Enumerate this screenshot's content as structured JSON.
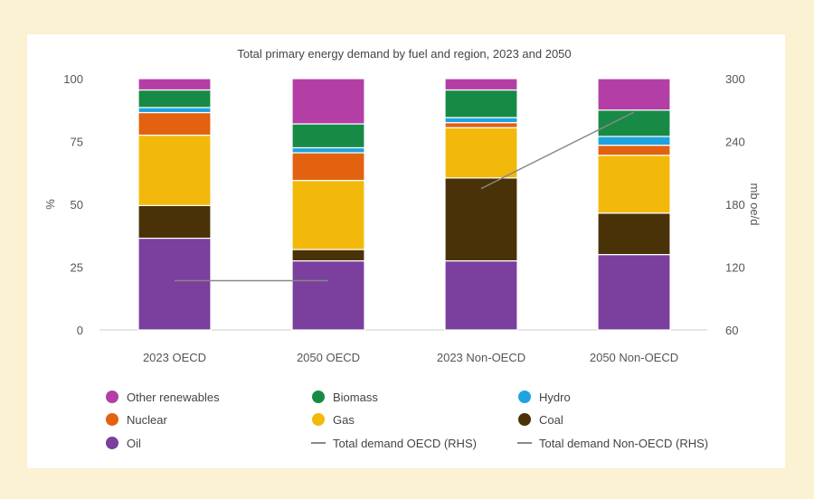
{
  "chart_data": {
    "type": "bar",
    "stacked": true,
    "title": "",
    "subtitle": "Total primary energy demand by fuel and region, 2023 and 2050",
    "categories": [
      "2023 OECD",
      "2050 OECD",
      "2023 Non-OECD",
      "2050 Non-OECD"
    ],
    "ylabel": "%",
    "ylim": [
      0,
      100
    ],
    "yticks": [
      0,
      25,
      50,
      75,
      100
    ],
    "y2label": "mb oe/d",
    "y2lim": [
      60,
      300
    ],
    "y2ticks": [
      60,
      120,
      180,
      240,
      300
    ],
    "grid": false,
    "legend_position": "bottom",
    "series": [
      {
        "name": "Oil",
        "color": "#7b3f9e",
        "values": [
          36.5,
          27.5,
          27.5,
          30
        ]
      },
      {
        "name": "Coal",
        "color": "#4a3208",
        "values": [
          13,
          4.5,
          33,
          16.5
        ]
      },
      {
        "name": "Gas",
        "color": "#f2b90a",
        "values": [
          28,
          27.5,
          20,
          23
        ]
      },
      {
        "name": "Nuclear",
        "color": "#e2620f",
        "values": [
          9,
          11,
          2,
          4
        ]
      },
      {
        "name": "Hydro",
        "color": "#1fa3e0",
        "values": [
          2,
          2,
          2,
          3.5
        ]
      },
      {
        "name": "Biomass",
        "color": "#178b45",
        "values": [
          7,
          9.5,
          11,
          10.5
        ]
      },
      {
        "name": "Other renewables",
        "color": "#b33fa6",
        "values": [
          4.5,
          18,
          4.5,
          12.5
        ]
      }
    ],
    "lines": [
      {
        "name": "Total demand OECD (RHS)",
        "color": "#888888",
        "points": [
          [
            "2023 OECD",
            107
          ],
          [
            "2050 OECD",
            107
          ]
        ]
      },
      {
        "name": "Total demand Non-OECD (RHS)",
        "color": "#888888",
        "points": [
          [
            "2023 Non-OECD",
            195
          ],
          [
            "2050 Non-OECD",
            268
          ]
        ]
      }
    ],
    "legend_order": [
      "Other renewables",
      "Biomass",
      "Hydro",
      "Nuclear",
      "Gas",
      "Coal",
      "Oil",
      "Total demand OECD (RHS)",
      "Total demand Non-OECD (RHS)"
    ]
  }
}
